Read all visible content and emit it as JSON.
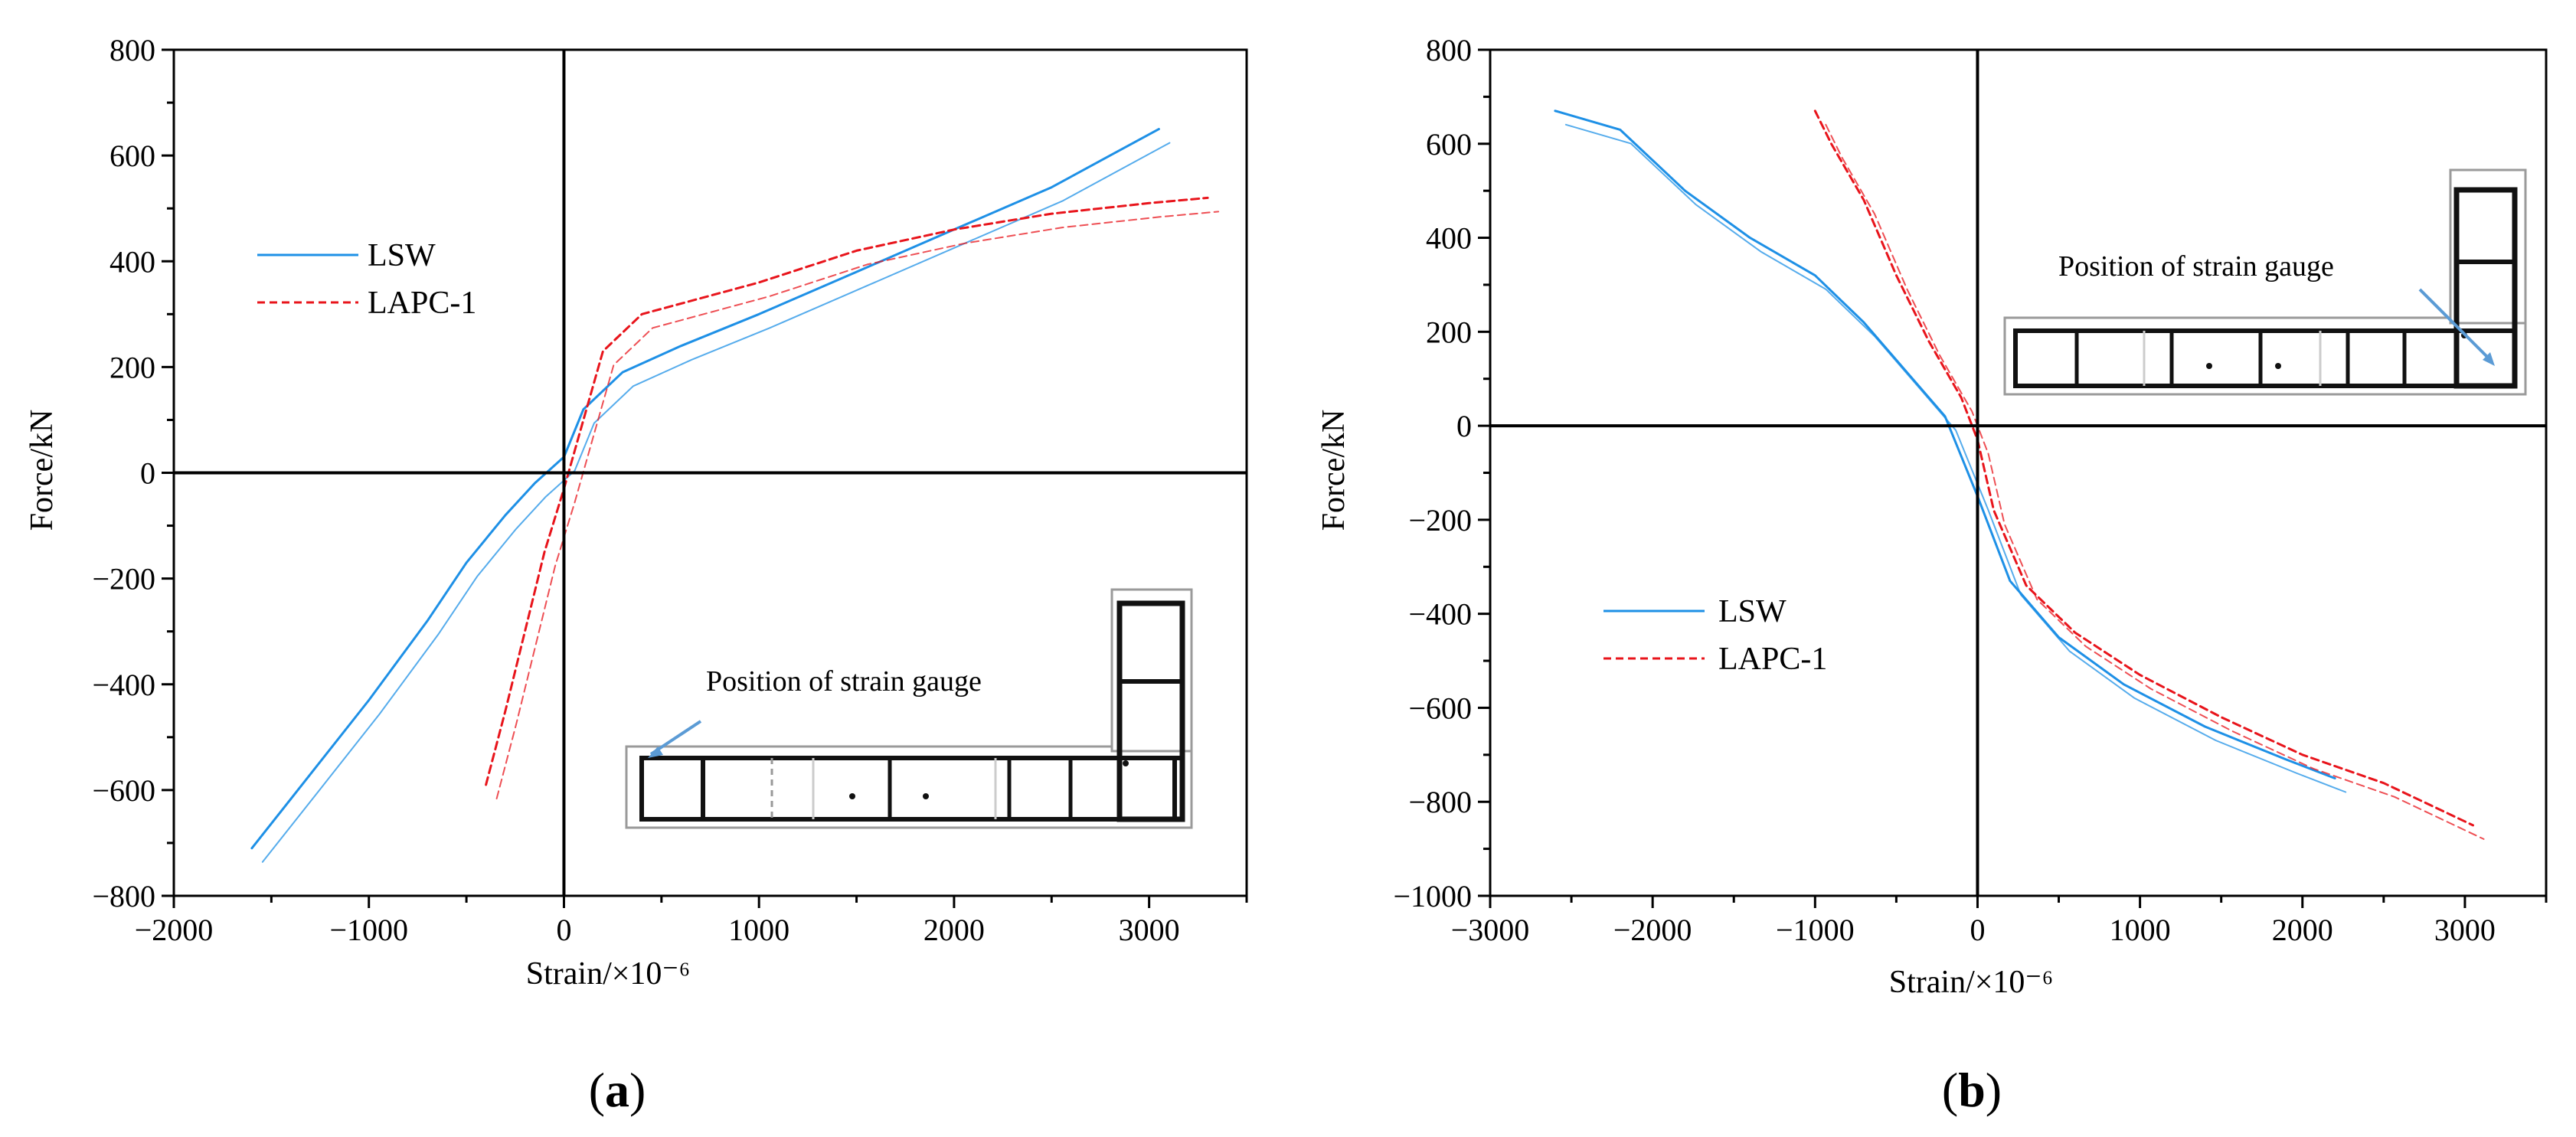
{
  "chart_data": [
    {
      "type": "line",
      "panel_label": "a",
      "title": "",
      "xlabel": "Strain/×10⁻⁶",
      "ylabel": "Force/kN",
      "xlim": [
        -2000,
        3500
      ],
      "ylim": [
        -800,
        800
      ],
      "xticks": [
        -2000,
        -1000,
        0,
        1000,
        2000,
        3000
      ],
      "xtick_labels": [
        "−2000",
        "−1000",
        "0",
        "1000",
        "2000",
        "3000"
      ],
      "yticks": [
        -800,
        -600,
        -400,
        -200,
        0,
        200,
        400,
        600,
        800
      ],
      "ytick_labels": [
        "−800",
        "−600",
        "−400",
        "−200",
        "0",
        "200",
        "400",
        "600",
        "800"
      ],
      "grid": false,
      "legend_position": "middle-left",
      "annotation": "Position of strain gauge",
      "series": [
        {
          "name": "LSW",
          "color": "#1E90E6",
          "style": "solid",
          "x": [
            -1600,
            -1300,
            -1000,
            -700,
            -500,
            -300,
            -150,
            0,
            100,
            300,
            600,
            1000,
            1500,
            2000,
            2500,
            2800,
            3050
          ],
          "y": [
            -710,
            -570,
            -430,
            -280,
            -170,
            -80,
            -20,
            30,
            120,
            190,
            240,
            300,
            380,
            460,
            540,
            600,
            650
          ]
        },
        {
          "name": "LAPC-1",
          "color": "#E8141B",
          "style": "dashed",
          "x": [
            -400,
            -300,
            -200,
            -100,
            0,
            100,
            200,
            400,
            700,
            1000,
            1500,
            2000,
            2500,
            3000,
            3300
          ],
          "y": [
            -590,
            -450,
            -300,
            -150,
            -30,
            100,
            230,
            300,
            330,
            360,
            420,
            460,
            490,
            510,
            520
          ]
        }
      ]
    },
    {
      "type": "line",
      "panel_label": "b",
      "title": "",
      "xlabel": "Strain/×10⁻⁶",
      "ylabel": "Force/kN",
      "xlim": [
        -3000,
        3500
      ],
      "ylim": [
        -1000,
        800
      ],
      "xticks": [
        -3000,
        -2000,
        -1000,
        0,
        1000,
        2000,
        3000
      ],
      "xtick_labels": [
        "−3000",
        "−2000",
        "−1000",
        "0",
        "1000",
        "2000",
        "3000"
      ],
      "yticks": [
        -1000,
        -800,
        -600,
        -400,
        -200,
        0,
        200,
        400,
        600,
        800
      ],
      "ytick_labels": [
        "−1000",
        "−800",
        "−600",
        "−400",
        "−200",
        "0",
        "200",
        "400",
        "600",
        "800"
      ],
      "grid": false,
      "legend_position": "lower-left",
      "annotation": "Position of strain gauge",
      "series": [
        {
          "name": "LSW",
          "color": "#1E90E6",
          "style": "solid",
          "x": [
            -2600,
            -2200,
            -1800,
            -1400,
            -1000,
            -700,
            -400,
            -200,
            0,
            200,
            500,
            900,
            1400,
            1900,
            2200
          ],
          "y": [
            670,
            630,
            500,
            400,
            320,
            220,
            100,
            20,
            -150,
            -330,
            -450,
            -550,
            -640,
            -710,
            -750
          ]
        },
        {
          "name": "LAPC-1",
          "color": "#E8141B",
          "style": "dashed",
          "x": [
            -1000,
            -900,
            -700,
            -500,
            -300,
            -100,
            0,
            100,
            300,
            600,
            1000,
            1500,
            2000,
            2500,
            3050
          ],
          "y": [
            670,
            600,
            480,
            320,
            180,
            60,
            -30,
            -180,
            -340,
            -440,
            -530,
            -620,
            -700,
            -760,
            -850
          ]
        }
      ]
    }
  ]
}
